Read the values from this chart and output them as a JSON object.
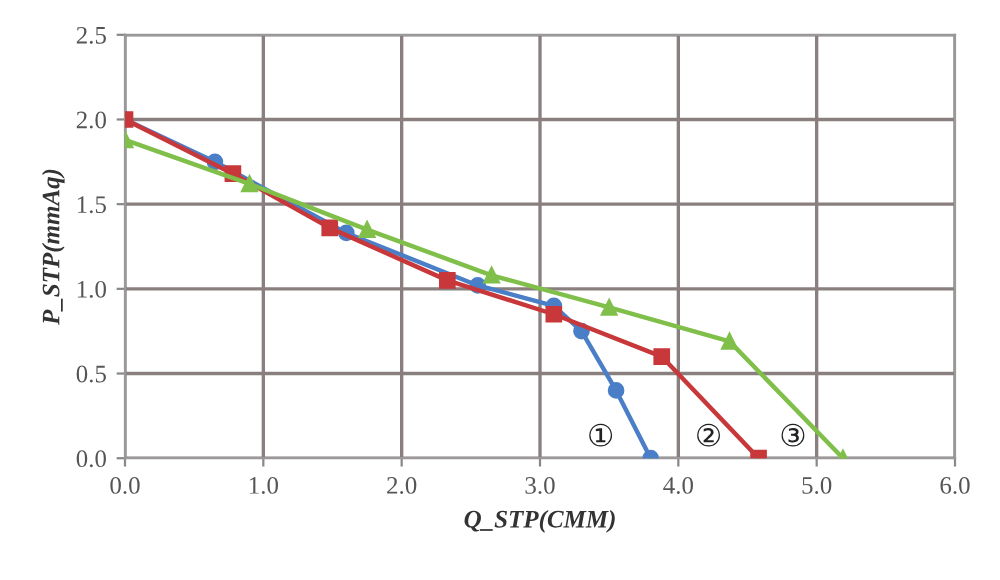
{
  "chart_data": {
    "type": "line",
    "xlabel": "Q_STP(CMM)",
    "ylabel": "P_STP(mmAq)",
    "xlim": [
      0,
      6
    ],
    "ylim": [
      0,
      2.5
    ],
    "xticks": [
      {
        "value": 0,
        "label": "0.0"
      },
      {
        "value": 1,
        "label": "1.0"
      },
      {
        "value": 2,
        "label": "2.0"
      },
      {
        "value": 3,
        "label": "3.0"
      },
      {
        "value": 4,
        "label": "4.0"
      },
      {
        "value": 5,
        "label": "5.0"
      },
      {
        "value": 6,
        "label": "6.0"
      }
    ],
    "yticks": [
      {
        "value": 0,
        "label": "0.0"
      },
      {
        "value": 0.5,
        "label": "0.5"
      },
      {
        "value": 1,
        "label": "1.0"
      },
      {
        "value": 1.5,
        "label": "1.5"
      },
      {
        "value": 2,
        "label": "2.0"
      },
      {
        "value": 2.5,
        "label": "2.5"
      }
    ],
    "grid": true,
    "legend": false,
    "series": [
      {
        "color": "#4a7fc8",
        "marker": "circle",
        "x": [
          0,
          0.65,
          1.6,
          2.55,
          3.1,
          3.3,
          3.55,
          3.8
        ],
        "values": [
          2.0,
          1.75,
          1.33,
          1.02,
          0.9,
          0.75,
          0.4,
          0.0
        ]
      },
      {
        "color": "#c8383a",
        "marker": "square",
        "x": [
          0,
          0.78,
          1.48,
          2.33,
          3.1,
          3.88,
          4.58
        ],
        "values": [
          2.0,
          1.68,
          1.36,
          1.05,
          0.85,
          0.6,
          0.0
        ]
      },
      {
        "color": "#7fbf4a",
        "marker": "triangle",
        "x": [
          0,
          0.9,
          1.75,
          2.65,
          3.5,
          4.37,
          5.19
        ],
        "values": [
          1.88,
          1.62,
          1.35,
          1.08,
          0.89,
          0.69,
          0.0
        ]
      }
    ],
    "annotations": [
      "①",
      "②",
      "③"
    ]
  }
}
